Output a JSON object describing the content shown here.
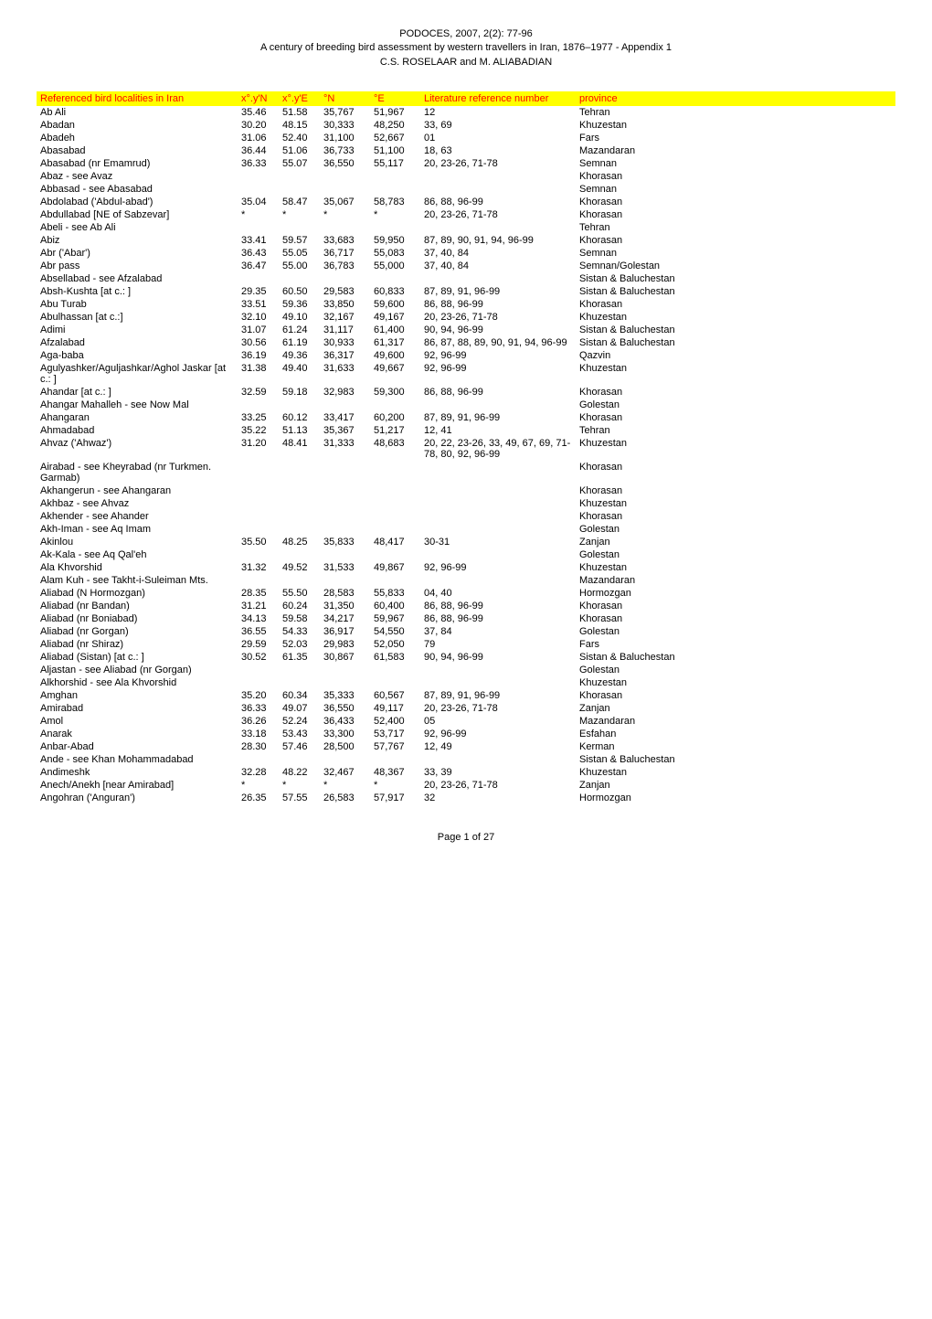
{
  "header": {
    "line1": "PODOCES, 2007, 2(2): 77-96",
    "line2": "A century of breeding bird assessment by western travellers in Iran, 1876–1977 - Appendix 1",
    "line3": "C.S. ROSELAAR and M. ALIABADIAN"
  },
  "table": {
    "header_bg": "#ffff00",
    "header_color": "#ff0000",
    "columns": [
      "Referenced bird localities in Iran",
      "x°.y'N",
      "x°.y'E",
      "°N",
      "°E",
      "Literature reference number",
      "province"
    ],
    "rows": [
      [
        "Ab Ali",
        "35.46",
        "51.58",
        "35,767",
        "51,967",
        "12",
        "Tehran"
      ],
      [
        "Abadan",
        "30.20",
        "48.15",
        "30,333",
        "48,250",
        "33, 69",
        "Khuzestan"
      ],
      [
        "Abadeh",
        "31.06",
        "52.40",
        "31,100",
        "52,667",
        "01",
        "Fars"
      ],
      [
        "Abasabad",
        "36.44",
        "51.06",
        "36,733",
        "51,100",
        "18, 63",
        "Mazandaran"
      ],
      [
        "Abasabad (nr Emamrud)",
        "36.33",
        "55.07",
        "36,550",
        "55,117",
        "20, 23-26, 71-78",
        "Semnan"
      ],
      [
        "Abaz - see Avaz",
        "",
        "",
        "",
        "",
        "",
        "Khorasan"
      ],
      [
        "Abbasad - see Abasabad",
        "",
        "",
        "",
        "",
        "",
        "Semnan"
      ],
      [
        "Abdolabad ('Abdul-abad')",
        "35.04",
        "58.47",
        "35,067",
        "58,783",
        "86, 88, 96-99",
        "Khorasan"
      ],
      [
        "Abdullabad [NE of Sabzevar]",
        "*",
        "*",
        "*",
        "*",
        "20, 23-26, 71-78",
        "Khorasan"
      ],
      [
        "Abeli - see Ab Ali",
        "",
        "",
        "",
        "",
        "",
        "Tehran"
      ],
      [
        "Abiz",
        "33.41",
        "59.57",
        "33,683",
        "59,950",
        "87, 89, 90, 91, 94, 96-99",
        "Khorasan"
      ],
      [
        "Abr ('Abar')",
        "36.43",
        "55.05",
        "36,717",
        "55,083",
        "37, 40, 84",
        "Semnan"
      ],
      [
        "Abr pass",
        "36.47",
        "55.00",
        "36,783",
        "55,000",
        "37, 40, 84",
        "Semnan/Golestan"
      ],
      [
        "Absellabad - see Afzalabad",
        "",
        "",
        "",
        "",
        "",
        "Sistan & Baluchestan"
      ],
      [
        "Absh-Kushta [at c.: ]",
        "29.35",
        "60.50",
        "29,583",
        "60,833",
        "87, 89, 91, 96-99",
        "Sistan & Baluchestan"
      ],
      [
        "Abu Turab",
        "33.51",
        "59.36",
        "33,850",
        "59,600",
        "86, 88, 96-99",
        "Khorasan"
      ],
      [
        "Abulhassan [at c.:]",
        "32.10",
        "49.10",
        "32,167",
        "49,167",
        "20, 23-26, 71-78",
        "Khuzestan"
      ],
      [
        "Adimi",
        "31.07",
        "61.24",
        "31,117",
        "61,400",
        "90, 94, 96-99",
        "Sistan & Baluchestan"
      ],
      [
        "Afzalabad",
        "30.56",
        "61.19",
        "30,933",
        "61,317",
        "86, 87, 88, 89, 90, 91, 94, 96-99",
        "Sistan & Baluchestan"
      ],
      [
        "Aga-baba",
        "36.19",
        "49.36",
        "36,317",
        "49,600",
        "92, 96-99",
        "Qazvin"
      ],
      [
        "Agulyashker/Aguljashkar/Aghol Jaskar [at c.: ]",
        "31.38",
        "49.40",
        "31,633",
        "49,667",
        "92, 96-99",
        "Khuzestan"
      ],
      [
        "Ahandar [at c.: ]",
        "32.59",
        "59.18",
        "32,983",
        "59,300",
        "86, 88, 96-99",
        "Khorasan"
      ],
      [
        "Ahangar Mahalleh - see Now Mal",
        "",
        "",
        "",
        "",
        "",
        "Golestan"
      ],
      [
        "Ahangaran",
        "33.25",
        "60.12",
        "33,417",
        "60,200",
        "87, 89, 91, 96-99",
        "Khorasan"
      ],
      [
        "Ahmadabad",
        "35.22",
        "51.13",
        "35,367",
        "51,217",
        "12, 41",
        "Tehran"
      ],
      [
        "Ahvaz ('Ahwaz')",
        "31.20",
        "48.41",
        "31,333",
        "48,683",
        "20, 22, 23-26, 33, 49, 67, 69, 71-78, 80, 92, 96-99",
        "Khuzestan"
      ],
      [
        "Airabad - see Kheyrabad (nr Turkmen. Garmab)",
        "",
        "",
        "",
        "",
        "",
        "Khorasan"
      ],
      [
        "Akhangerun - see Ahangaran",
        "",
        "",
        "",
        "",
        "",
        "Khorasan"
      ],
      [
        "Akhbaz - see Ahvaz",
        "",
        "",
        "",
        "",
        "",
        "Khuzestan"
      ],
      [
        "Akhender - see Ahander",
        "",
        "",
        "",
        "",
        "",
        "Khorasan"
      ],
      [
        "Akh-Iman - see Aq Imam",
        "",
        "",
        "",
        "",
        "",
        "Golestan"
      ],
      [
        "Akinlou",
        "35.50",
        "48.25",
        "35,833",
        "48,417",
        "30-31",
        "Zanjan"
      ],
      [
        "Ak-Kala - see Aq Qal'eh",
        "",
        "",
        "",
        "",
        "",
        "Golestan"
      ],
      [
        "Ala Khvorshid",
        "31.32",
        "49.52",
        "31,533",
        "49,867",
        "92, 96-99",
        "Khuzestan"
      ],
      [
        "Alam Kuh - see Takht-i-Suleiman Mts.",
        "",
        "",
        "",
        "",
        "",
        "Mazandaran"
      ],
      [
        "Aliabad (N Hormozgan)",
        "28.35",
        "55.50",
        "28,583",
        "55,833",
        "04, 40",
        "Hormozgan"
      ],
      [
        "Aliabad (nr Bandan)",
        "31.21",
        "60.24",
        "31,350",
        "60,400",
        "86, 88, 96-99",
        "Khorasan"
      ],
      [
        "Aliabad (nr Boniabad)",
        "34.13",
        "59.58",
        "34,217",
        "59,967",
        "86, 88, 96-99",
        "Khorasan"
      ],
      [
        "Aliabad (nr Gorgan)",
        "36.55",
        "54.33",
        "36,917",
        "54,550",
        "37, 84",
        "Golestan"
      ],
      [
        "Aliabad (nr Shiraz)",
        "29.59",
        "52.03",
        "29,983",
        "52,050",
        "79",
        "Fars"
      ],
      [
        "Aliabad (Sistan) [at c.: ]",
        "30.52",
        "61.35",
        "30,867",
        "61,583",
        "90, 94, 96-99",
        "Sistan & Baluchestan"
      ],
      [
        "Aljastan - see Aliabad (nr Gorgan)",
        "",
        "",
        "",
        "",
        "",
        "Golestan"
      ],
      [
        "Alkhorshid - see Ala Khvorshid",
        "",
        "",
        "",
        "",
        "",
        "Khuzestan"
      ],
      [
        "Amghan",
        "35.20",
        "60.34",
        "35,333",
        "60,567",
        "87, 89, 91, 96-99",
        "Khorasan"
      ],
      [
        "Amirabad",
        "36.33",
        "49.07",
        "36,550",
        "49,117",
        "20, 23-26, 71-78",
        "Zanjan"
      ],
      [
        "Amol",
        "36.26",
        "52.24",
        "36,433",
        "52,400",
        "05",
        "Mazandaran"
      ],
      [
        "Anarak",
        "33.18",
        "53.43",
        "33,300",
        "53,717",
        "92, 96-99",
        "Esfahan"
      ],
      [
        "Anbar-Abad",
        "28.30",
        "57.46",
        "28,500",
        "57,767",
        "12, 49",
        "Kerman"
      ],
      [
        "Ande - see Khan Mohammadabad",
        "",
        "",
        "",
        "",
        "",
        "Sistan & Baluchestan"
      ],
      [
        "Andimeshk",
        "32.28",
        "48.22",
        "32,467",
        "48,367",
        "33, 39",
        "Khuzestan"
      ],
      [
        "Anech/Anekh [near Amirabad]",
        "*",
        "*",
        "*",
        "*",
        "20, 23-26, 71-78",
        "Zanjan"
      ],
      [
        "Angohran ('Anguran')",
        "26.35",
        "57.55",
        "26,583",
        "57,917",
        "32",
        "Hormozgan"
      ]
    ]
  },
  "footer": {
    "page_label": "Page 1 of 27"
  }
}
